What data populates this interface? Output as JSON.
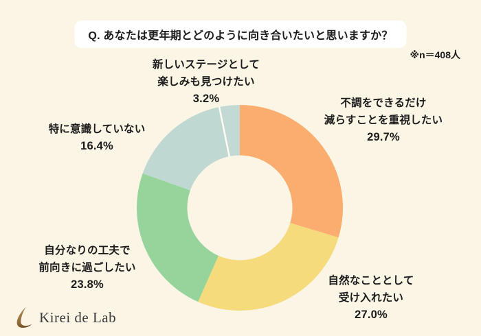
{
  "page": {
    "background_color": "#FBF5E6",
    "text_color": "#1B1B1B"
  },
  "header": {
    "question": "Q. あなたは更年期とどのように向き合いたいと思いますか？",
    "sample_note": "※n＝408人"
  },
  "chart_data": {
    "type": "pie",
    "subtype": "donut",
    "title": "Q. あなたは更年期とどのように向き合いたいと思いますか？",
    "sample_size": 408,
    "sample_note": "※n＝408人",
    "start_angle_deg": 0,
    "direction": "clockwise",
    "inner_radius_ratio": 0.51,
    "segments": [
      {
        "label": "不調をできるだけ減らすことを重視したい",
        "value": 29.7,
        "color": "#FAAD6E"
      },
      {
        "label": "自然なこととして受け入れたい",
        "value": 27.0,
        "color": "#F6DB7D"
      },
      {
        "label": "自分なりの工夫で前向きに過ごしたい",
        "value": 23.8,
        "color": "#97D49B"
      },
      {
        "label": "特に意識していない",
        "value": 16.4,
        "color": "#C0D8D2"
      },
      {
        "label": "新しいステージとして楽しみも見つけたい",
        "value": 3.2,
        "color": "#C3DAD4",
        "separator_before": true
      }
    ],
    "separator_color": "#FDFBF2"
  },
  "labels": {
    "top": {
      "line1": "新しいステージとして",
      "line2": "楽しみも見つけたい",
      "pct": "3.2%"
    },
    "right": {
      "line1": "不調をできるだけ",
      "line2": "減らすことを重視したい",
      "pct": "29.7%"
    },
    "left": {
      "line1": "特に意識していない",
      "pct": "16.4%"
    },
    "bottom_left": {
      "line1": "自分なりの工夫で",
      "line2": "前向きに過ごしたい",
      "pct": "23.8%"
    },
    "bottom_right": {
      "line1": "自然なこととして",
      "line2": "受け入れたい",
      "pct": "27.0%"
    }
  },
  "footer": {
    "logo_text": "Kirei de Lab",
    "logo_color_dark": "#6E4B24",
    "logo_color_light": "#C59A5F"
  }
}
